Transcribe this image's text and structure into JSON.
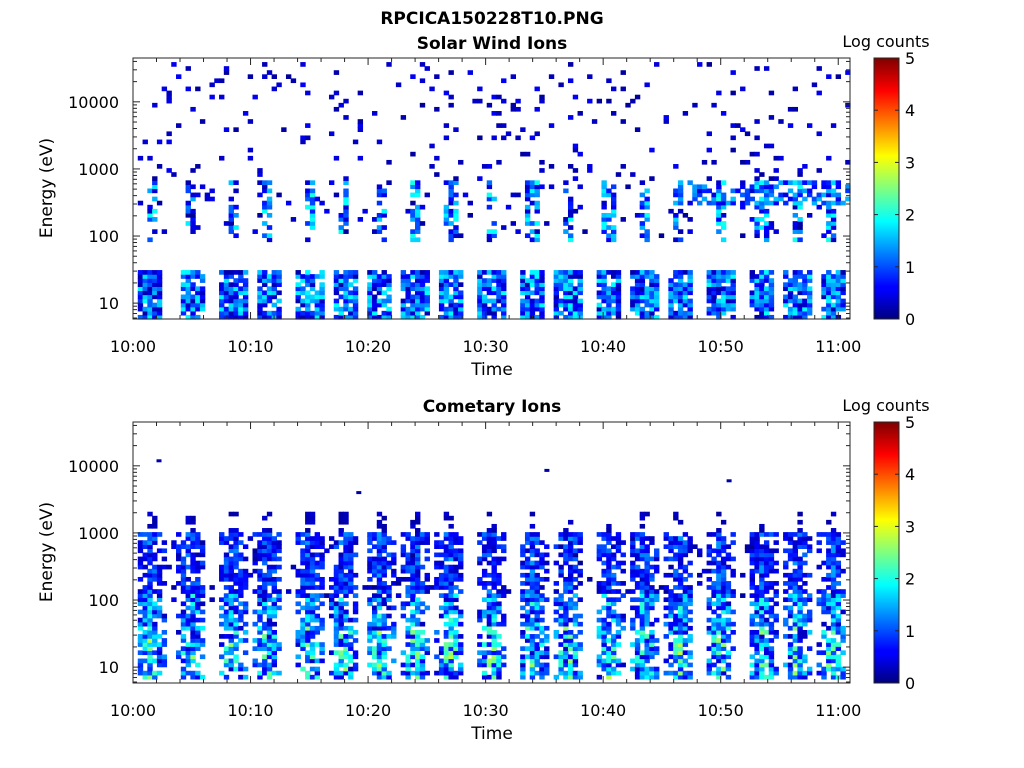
{
  "figure_title": "RPCICA150228T10.PNG",
  "colorbar": {
    "label": "Log counts",
    "ticks": [
      "0",
      "1",
      "2",
      "3",
      "4",
      "5"
    ],
    "range": [
      0,
      5
    ]
  },
  "chart_data": [
    {
      "type": "heatmap",
      "title": "Solar Wind Ions",
      "xlabel": "Time",
      "ylabel": "Energy (eV)",
      "x_range": [
        "10:00",
        "11:01"
      ],
      "x_ticks": [
        "10:00",
        "10:10",
        "10:20",
        "10:30",
        "10:40",
        "10:50",
        "11:00"
      ],
      "y_range": [
        5.8,
        45000
      ],
      "y_scale": "log",
      "y_ticks": [
        "10",
        "100",
        "1000",
        "10000"
      ],
      "colormap": "jet",
      "color_range": [
        0,
        5
      ],
      "pattern": {
        "sweep_times_min": [
          1.5,
          5,
          8.5,
          11.5,
          15,
          18,
          21,
          24,
          27,
          30.5,
          34,
          37,
          40.5,
          43.5,
          46.5,
          50,
          53.5,
          56.5,
          59.5
        ],
        "low_band_eV": [
          6,
          33
        ],
        "low_band_level": [
          0.2,
          1.9
        ],
        "mid_band_eV": [
          80,
          700
        ],
        "mid_band_level": [
          0.3,
          2.0
        ],
        "late_broadband_start_min": 47,
        "sparse_noise_eV": [
          100,
          40000
        ],
        "sparse_noise_level": [
          0.1,
          0.6
        ]
      }
    },
    {
      "type": "heatmap",
      "title": "Cometary Ions",
      "xlabel": "Time",
      "ylabel": "Energy (eV)",
      "x_range": [
        "10:00",
        "11:01"
      ],
      "x_ticks": [
        "10:00",
        "10:10",
        "10:20",
        "10:30",
        "10:40",
        "10:50",
        "11:00"
      ],
      "y_range": [
        5.8,
        45000
      ],
      "y_scale": "log",
      "y_ticks": [
        "10",
        "100",
        "1000",
        "10000"
      ],
      "colormap": "jet",
      "color_range": [
        0,
        5
      ],
      "pattern": {
        "sweep_times_min": [
          1.5,
          5,
          8.5,
          11.5,
          15,
          18,
          21,
          24,
          27,
          30.5,
          34,
          37,
          40.5,
          43.5,
          46.5,
          50,
          53.5,
          56.5,
          59.5
        ],
        "sweep_upper_eV": 1000,
        "sweep_lower_eV": 7,
        "peak_level": 2.9,
        "base_level": 0.3,
        "sparse_noise_eV": [
          100,
          1000
        ],
        "isolated_points": [
          {
            "t_min": 2,
            "eV": 12500
          },
          {
            "t_min": 19,
            "eV": 4200
          },
          {
            "t_min": 35,
            "eV": 9000
          },
          {
            "t_min": 50.5,
            "eV": 6300
          }
        ]
      }
    }
  ]
}
